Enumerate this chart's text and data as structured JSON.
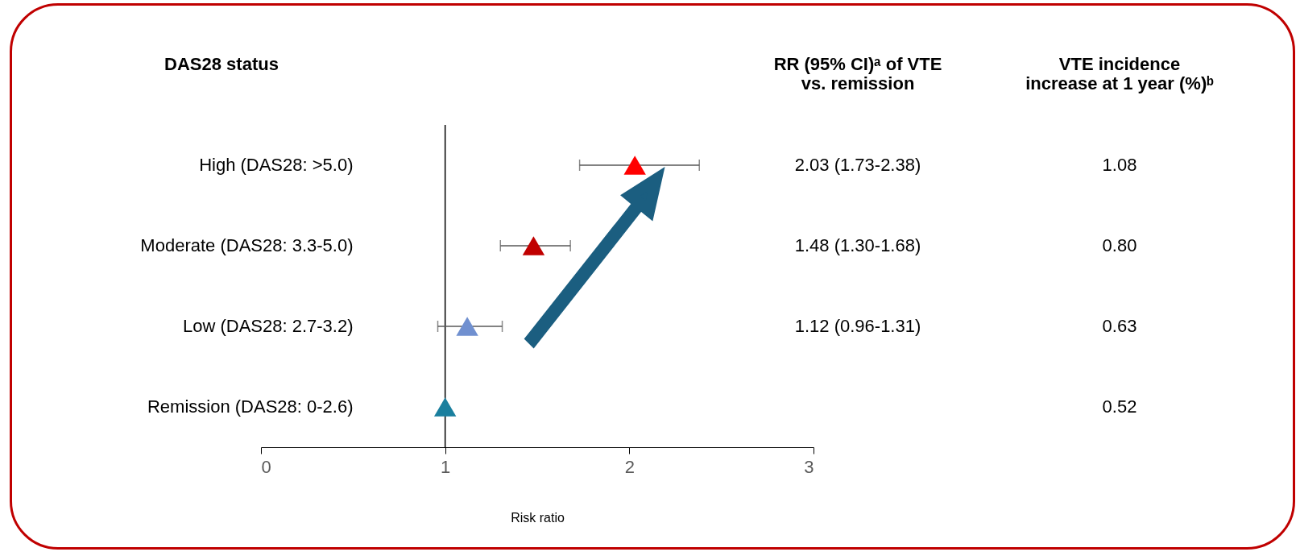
{
  "chart_data": {
    "type": "scatter",
    "orientation": "horizontal",
    "marker": "triangle",
    "grid": false,
    "categories": [
      "High (DAS28: >5.0)",
      "Moderate (DAS28: 3.3-5.0)",
      "Low (DAS28: 2.7-3.2)",
      "Remission (DAS28: 0-2.6)"
    ],
    "values": [
      2.03,
      1.48,
      1.12,
      1.0
    ],
    "errors": [
      [
        1.73,
        2.38
      ],
      [
        1.3,
        1.68
      ],
      [
        0.96,
        1.31
      ],
      null
    ],
    "colors": [
      "#ff0000",
      "#c00000",
      "#7090d0",
      "#1a7f9e"
    ],
    "value_labels": [
      "2.03 (1.73-2.38)",
      "1.48 (1.30-1.68)",
      "1.12 (0.96-1.31)",
      null
    ],
    "xlim": [
      0,
      3
    ],
    "xticks": [
      0,
      1,
      2,
      3
    ],
    "xlabel": "Risk ratio",
    "ylabel": "DAS28 status",
    "ref_lines": [
      {
        "axis": "x",
        "value": 1,
        "color": "#000000"
      }
    ],
    "annotations": [
      "RR (95% CI)ᵃ of VTE\nvs. remission",
      "VTE incidence\nincrease at 1 year (%)ᵇ",
      "1.08",
      "0.80",
      "0.63",
      "0.52"
    ]
  }
}
